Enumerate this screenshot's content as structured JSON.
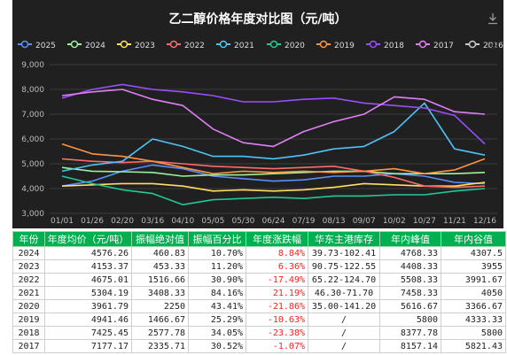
{
  "chart_data": {
    "type": "line",
    "title": "乙二醇价格年度对比图（元/吨）",
    "legend_position": "top",
    "legend_page": "1/2",
    "ylim": [
      3000,
      9000
    ],
    "yticks": [
      "3,000",
      "4,000",
      "5,000",
      "6,000",
      "7,000",
      "8,000",
      "9,000"
    ],
    "x_tick_labels": [
      "01/01",
      "01/26",
      "02/20",
      "03/16",
      "04/10",
      "05/05",
      "05/30",
      "06/24",
      "07/19",
      "08/13",
      "09/07",
      "10/02",
      "10/27",
      "11/21",
      "12/16"
    ],
    "grid": true,
    "series": [
      {
        "name": "2025",
        "color": "#5b8ff9",
        "values": [
          4100,
          4300,
          4700,
          4950,
          4800,
          4500,
          4400,
          4300,
          4350,
          4500,
          4500,
          4600,
          4500,
          4250,
          4200
        ]
      },
      {
        "name": "2024",
        "color": "#a0f0a0",
        "values": [
          4850,
          4700,
          4680,
          4650,
          4500,
          4550,
          4550,
          4600,
          4650,
          4700,
          4700,
          4600,
          4600,
          4600,
          4650
        ]
      },
      {
        "name": "2023",
        "color": "#ffe066",
        "values": [
          4100,
          4150,
          4200,
          4200,
          4100,
          3900,
          3950,
          3900,
          3950,
          4050,
          4200,
          4150,
          4100,
          4100,
          4250
        ]
      },
      {
        "name": "2022",
        "color": "#ff6b6b",
        "values": [
          5200,
          5100,
          5050,
          5100,
          5000,
          4900,
          4850,
          4800,
          4850,
          4900,
          4700,
          4450,
          4100,
          4050,
          4100
        ]
      },
      {
        "name": "2021",
        "color": "#4fc3f7",
        "values": [
          4700,
          4950,
          5100,
          6000,
          5700,
          5300,
          5300,
          5200,
          5350,
          5600,
          5700,
          6300,
          7450,
          5600,
          5350
        ]
      },
      {
        "name": "2020",
        "color": "#20c997",
        "values": [
          4500,
          4200,
          3950,
          3800,
          3350,
          3550,
          3600,
          3650,
          3600,
          3700,
          3700,
          3750,
          3750,
          3900,
          4000
        ]
      },
      {
        "name": "2019",
        "color": "#ff9540",
        "values": [
          5800,
          5400,
          5300,
          5100,
          4850,
          4600,
          4700,
          4650,
          4700,
          4650,
          4700,
          4800,
          4600,
          4750,
          5200
        ]
      },
      {
        "name": "2018",
        "color": "#9b4dff",
        "values": [
          7650,
          8000,
          8200,
          8000,
          7900,
          7750,
          7500,
          7500,
          7600,
          7650,
          7450,
          7350,
          7250,
          6950,
          5800
        ]
      },
      {
        "name": "2017",
        "color": "#e07ff5",
        "values": [
          7750,
          7900,
          8000,
          7600,
          7350,
          6400,
          5850,
          5700,
          6300,
          6700,
          7000,
          7700,
          7600,
          7100,
          7000
        ]
      },
      {
        "name": "2016",
        "color": "#cccccc",
        "values": []
      }
    ],
    "table": {
      "headers": [
        "年份",
        "年度均价（元/吨）",
        "振幅绝对值",
        "振幅百分比",
        "年度涨跌幅",
        "华东主港库存",
        "年内峰值",
        "年内谷值"
      ],
      "rows": [
        [
          "2024",
          "4576.26",
          "460.83",
          "10.70%",
          "8.84%",
          "39.73-102.41",
          "4768.33",
          "4307.5"
        ],
        [
          "2023",
          "4153.37",
          "453.33",
          "11.20%",
          "6.36%",
          "90.75-122.55",
          "4408.33",
          "3955"
        ],
        [
          "2022",
          "4675.01",
          "1516.66",
          "30.90%",
          "-17.49%",
          "65.22-124.70",
          "5508.33",
          "3991.67"
        ],
        [
          "2021",
          "5304.19",
          "3408.33",
          "84.16%",
          "21.19%",
          "46.30-71.70",
          "7458.33",
          "4050"
        ],
        [
          "2020",
          "3961.79",
          "2250",
          "43.41%",
          "-21.86%",
          "35.00-141.20",
          "5616.67",
          "3366.67"
        ],
        [
          "2019",
          "4941.46",
          "1466.67",
          "25.29%",
          "-10.63%",
          "/",
          "5800",
          "4333.33"
        ],
        [
          "2018",
          "7425.45",
          "2577.78",
          "34.05%",
          "-23.38%",
          "/",
          "8377.78",
          "5800"
        ],
        [
          "2017",
          "7177.17",
          "2335.71",
          "30.52%",
          "-1.07%",
          "/",
          "8157.14",
          "5821.43"
        ]
      ]
    }
  }
}
